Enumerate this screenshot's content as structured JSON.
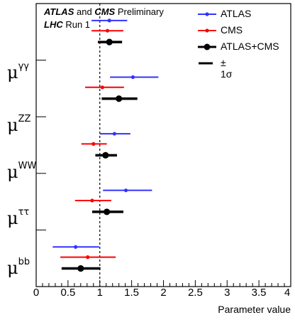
{
  "annotation": {
    "line1_atlas": "ATLAS",
    "line1_and": "and",
    "line1_cms": "CMS",
    "line1_rest": "Preliminary",
    "line2_lhc": "LHC",
    "line2_rest": "Run 1"
  },
  "legend": [
    {
      "label": "ATLAS",
      "color": "#3333ff",
      "style": "line-dot"
    },
    {
      "label": "CMS",
      "color": "#ff0000",
      "style": "line-dot"
    },
    {
      "label": "ATLAS+CMS",
      "color": "#000000",
      "style": "thick-dot"
    },
    {
      "label": "± 1σ",
      "color": "#000000",
      "style": "thick-line"
    }
  ],
  "chart_data": {
    "type": "scatter",
    "xlabel": "Parameter value",
    "xlim": [
      0,
      4
    ],
    "x_ticks": [
      "0",
      "0.5",
      "1",
      "1.5",
      "2",
      "2.5",
      "3",
      "3.5",
      "4"
    ],
    "reference_line_x": 1,
    "parameters": [
      {
        "base": "μ",
        "sup": "γγ",
        "atlas": {
          "value": 1.15,
          "low": 0.87,
          "high": 1.43
        },
        "cms": {
          "value": 1.12,
          "low": 0.87,
          "high": 1.37
        },
        "combined": {
          "value": 1.15,
          "low": 0.97,
          "high": 1.35
        }
      },
      {
        "base": "μ",
        "sup": "ZZ",
        "atlas": {
          "value": 1.52,
          "low": 1.16,
          "high": 1.92
        },
        "cms": {
          "value": 1.04,
          "low": 0.77,
          "high": 1.38
        },
        "combined": {
          "value": 1.3,
          "low": 1.03,
          "high": 1.59
        }
      },
      {
        "base": "μ",
        "sup": "WW",
        "atlas": {
          "value": 1.23,
          "low": 1.0,
          "high": 1.48
        },
        "cms": {
          "value": 0.9,
          "low": 0.71,
          "high": 1.11
        },
        "combined": {
          "value": 1.09,
          "low": 0.93,
          "high": 1.27
        }
      },
      {
        "base": "μ",
        "sup": "ττ",
        "atlas": {
          "value": 1.41,
          "low": 1.05,
          "high": 1.82
        },
        "cms": {
          "value": 0.88,
          "low": 0.61,
          "high": 1.18
        },
        "combined": {
          "value": 1.11,
          "low": 0.88,
          "high": 1.37
        }
      },
      {
        "base": "μ",
        "sup": "bb",
        "atlas": {
          "value": 0.62,
          "low": 0.26,
          "high": 0.99
        },
        "cms": {
          "value": 0.81,
          "low": 0.38,
          "high": 1.25
        },
        "combined": {
          "value": 0.7,
          "low": 0.4,
          "high": 1.01
        }
      }
    ]
  }
}
